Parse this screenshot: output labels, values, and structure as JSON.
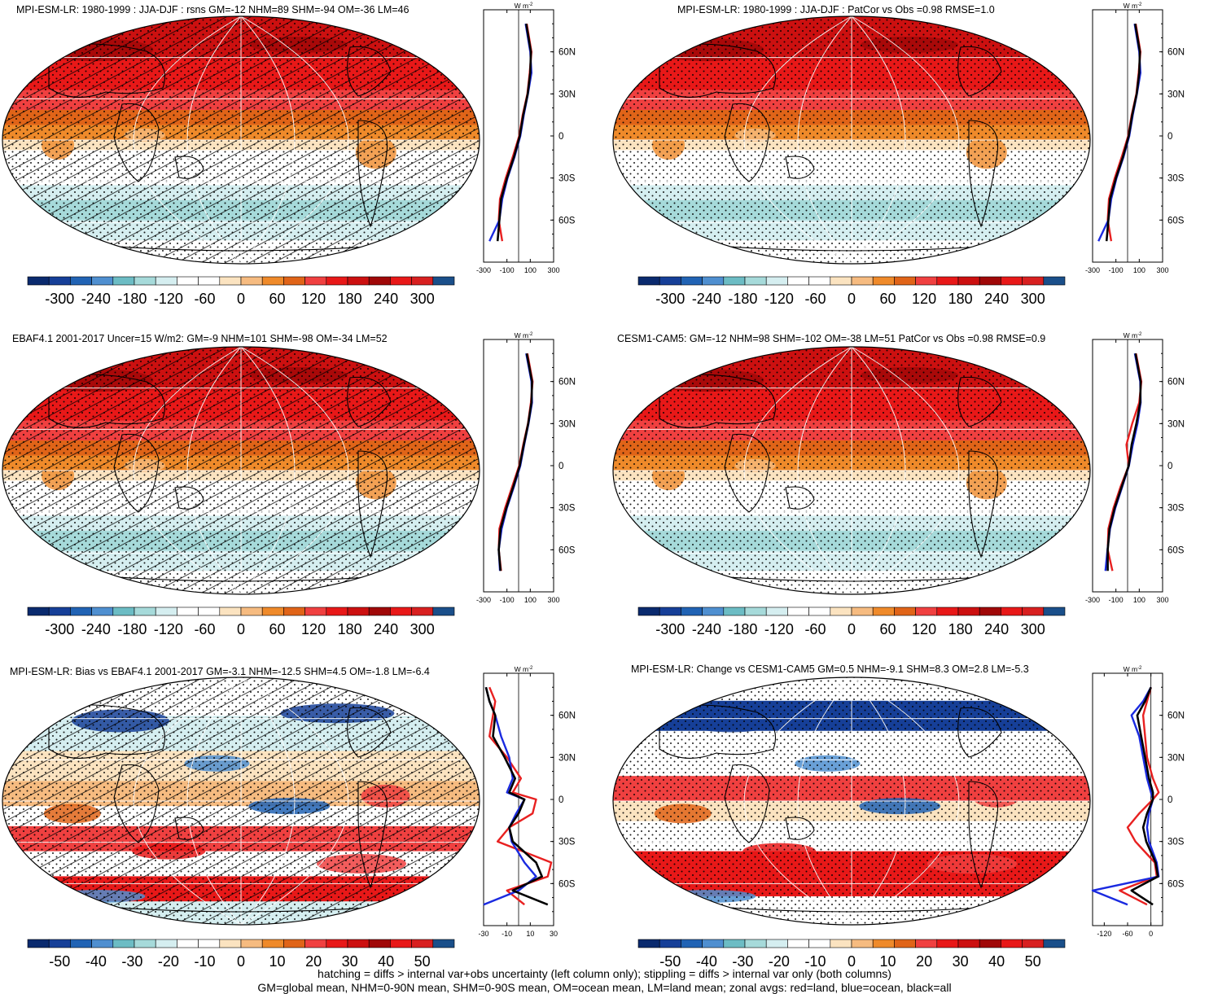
{
  "panels": [
    {
      "id": "p1",
      "title": "MPI-ESM-LR: 1980-1999 : JJA-DJF : rsns GM=-12 NHM=89 SHM=-94 OM=-36 LM=46",
      "hatched": true,
      "kind": "abs",
      "flip": false
    },
    {
      "id": "p2",
      "title": "MPI-ESM-LR: 1980-1999 : JJA-DJF : PatCor vs Obs =0.98 RMSE=1.0",
      "hatched": false,
      "kind": "abs",
      "flip": false
    },
    {
      "id": "p3",
      "title": "EBAF4.1 2001-2017 Uncer=15 W/m2: GM=-9 NHM=101 SHM=-98 OM=-34 LM=52",
      "hatched": true,
      "kind": "abs",
      "flip": false
    },
    {
      "id": "p4",
      "title": "CESM1-CAM5: GM=-12 NHM=98 SHM=-102 OM=-38 LM=51 PatCor vs Obs =0.98 RMSE=0.9",
      "hatched": false,
      "kind": "abs",
      "flip": false
    },
    {
      "id": "p5",
      "title": "MPI-ESM-LR: Bias vs EBAF4.1 2001-2017 GM=-3.1 NHM=-12.5 SHM=4.5 OM=-1.8 LM=-6.4",
      "hatched": true,
      "kind": "diff",
      "flip": false
    },
    {
      "id": "p6",
      "title": "MPI-ESM-LR: Change vs CESM1-CAM5 GM=0.5 NHM=-9.1 SHM=8.3 OM=2.8 LM=-5.3",
      "hatched": false,
      "kind": "diff",
      "flip": true
    }
  ],
  "colorbar_labels_abs": [
    "-300",
    "-240",
    "-180",
    "-120",
    "-60",
    "0",
    "60",
    "120",
    "180",
    "240",
    "300"
  ],
  "colorbar_labels_diff": [
    "-50",
    "-40",
    "-30",
    "-20",
    "-10",
    "0",
    "10",
    "20",
    "30",
    "40",
    "50"
  ],
  "colorbar_colors": [
    "#0a2a6e",
    "#163f98",
    "#2163b4",
    "#4f8fd0",
    "#6cbcc4",
    "#a6dada",
    "#d5eef0",
    "#ffffff",
    "#ffffff",
    "#fbe3c0",
    "#f6bb80",
    "#ef8a2a",
    "#e06418",
    "#f04040",
    "#e81818",
    "#cc1010",
    "#a00808",
    "#e81818",
    "#d82020",
    "#1a4f8a"
  ],
  "zonal_axis": {
    "unit": "W m",
    "unit_sup": "-2",
    "lat_labels": [
      "60N",
      "30N",
      "0",
      "30S",
      "60S"
    ],
    "xticks_abs": [
      "-300",
      "-100",
      "100",
      "300"
    ],
    "xticks_p5": [
      "-30",
      "-10",
      "10",
      "30"
    ],
    "xticks_p6": [
      "-120",
      "-60",
      "0"
    ]
  },
  "series_colors": {
    "land": "#e82020",
    "ocean": "#1a2ae0",
    "all": "#000000"
  },
  "footnote": {
    "line1": "hatching = diffs > internal var+obs uncertainty (left column only); stippling = diffs > internal var only (both columns)",
    "line2": "GM=global mean, NHM=0-90N mean, SHM=0-90S mean, OM=ocean mean, LM=land mean; zonal avgs: red=land, blue=ocean, black=all"
  },
  "chart_data": [
    {
      "type": "heatmap",
      "title": "MPI-ESM-LR: 1980-1999 : JJA-DJF : rsns GM=-12 NHM=89 SHM=-94 OM=-36 LM=46",
      "zonal_profile": {
        "lat": [
          80,
          60,
          45,
          30,
          15,
          0,
          -15,
          -30,
          -45,
          -60,
          -75
        ],
        "land": [
          70,
          110,
          95,
          75,
          35,
          5,
          -50,
          -110,
          -160,
          -170,
          -140
        ],
        "ocean": [
          60,
          100,
          110,
          80,
          45,
          15,
          -35,
          -95,
          -140,
          -165,
          -250
        ],
        "all": [
          65,
          105,
          100,
          78,
          40,
          10,
          -40,
          -100,
          -150,
          -165,
          -180
        ]
      }
    },
    {
      "type": "heatmap",
      "title": "MPI-ESM-LR: 1980-1999 : JJA-DJF : PatCor vs Obs =0.98 RMSE=1.0",
      "zonal_profile": {
        "lat": [
          80,
          60,
          45,
          30,
          15,
          0,
          -15,
          -30,
          -45,
          -60,
          -75
        ],
        "land": [
          70,
          110,
          95,
          75,
          35,
          5,
          -50,
          -110,
          -160,
          -170,
          -140
        ],
        "ocean": [
          60,
          100,
          110,
          80,
          45,
          15,
          -35,
          -95,
          -140,
          -165,
          -250
        ],
        "all": [
          65,
          105,
          100,
          78,
          40,
          10,
          -40,
          -100,
          -150,
          -165,
          -180
        ]
      }
    },
    {
      "type": "heatmap",
      "title": "EBAF4.1 2001-2017 Uncer=15 W/m2: GM=-9 NHM=101 SHM=-98 OM=-34 LM=52",
      "zonal_profile": {
        "lat": [
          80,
          60,
          45,
          30,
          15,
          0,
          -15,
          -30,
          -45,
          -60,
          -75
        ],
        "land": [
          75,
          120,
          105,
          80,
          40,
          5,
          -55,
          -115,
          -165,
          -170,
          -150
        ],
        "ocean": [
          65,
          110,
          115,
          85,
          48,
          15,
          -40,
          -100,
          -145,
          -170,
          -160
        ],
        "all": [
          70,
          115,
          110,
          82,
          45,
          10,
          -45,
          -105,
          -155,
          -170,
          -155
        ]
      }
    },
    {
      "type": "heatmap",
      "title": "CESM1-CAM5: GM=-12 NHM=98 SHM=-102 OM=-38 LM=51 PatCor vs Obs =0.98 RMSE=0.9",
      "zonal_profile": {
        "lat": [
          80,
          60,
          45,
          30,
          15,
          0,
          -15,
          -30,
          -45,
          -60,
          -75
        ],
        "land": [
          72,
          118,
          100,
          40,
          -10,
          10,
          -60,
          -120,
          -165,
          -170,
          -130
        ],
        "ocean": [
          62,
          108,
          112,
          85,
          45,
          12,
          -45,
          -105,
          -150,
          -172,
          -190
        ],
        "all": [
          68,
          112,
          108,
          75,
          35,
          10,
          -50,
          -110,
          -155,
          -170,
          -170
        ]
      }
    },
    {
      "type": "heatmap",
      "title": "MPI-ESM-LR: Bias vs EBAF4.1 2001-2017 GM=-3.1 NHM=-12.5 SHM=4.5 OM=-1.8 LM=-6.4",
      "zonal_profile": {
        "lat": [
          80,
          70,
          60,
          45,
          30,
          15,
          5,
          0,
          -10,
          -20,
          -30,
          -45,
          -55,
          -65,
          -75
        ],
        "land": [
          -25,
          -20,
          -22,
          -25,
          -10,
          2,
          -5,
          15,
          12,
          -8,
          -18,
          28,
          25,
          -10,
          5
        ],
        "ocean": [
          -28,
          -25,
          -20,
          -15,
          -8,
          -5,
          -10,
          5,
          -2,
          -8,
          -6,
          5,
          15,
          0,
          -30
        ],
        "all": [
          -28,
          -25,
          -20,
          -22,
          -12,
          -3,
          -8,
          5,
          0,
          -8,
          -5,
          15,
          20,
          -5,
          25
        ]
      }
    },
    {
      "type": "heatmap",
      "title": "MPI-ESM-LR: Change vs CESM1-CAM5 GM=0.5 NHM=-9.1 SHM=8.3 OM=2.8 LM=-5.3",
      "zonal_profile": {
        "lat": [
          80,
          70,
          60,
          45,
          30,
          15,
          5,
          0,
          -10,
          -20,
          -30,
          -45,
          -55,
          -65,
          -75
        ],
        "land": [
          0,
          -10,
          -20,
          -15,
          -10,
          5,
          20,
          5,
          -30,
          -60,
          -40,
          10,
          15,
          -80,
          -10
        ],
        "ocean": [
          0,
          -20,
          -50,
          -30,
          -20,
          -10,
          0,
          5,
          -5,
          -10,
          -5,
          15,
          20,
          -150,
          -60
        ],
        "all": [
          0,
          -15,
          -35,
          -25,
          -15,
          -5,
          5,
          5,
          -10,
          -20,
          -12,
          12,
          18,
          -50,
          5
        ]
      }
    }
  ]
}
